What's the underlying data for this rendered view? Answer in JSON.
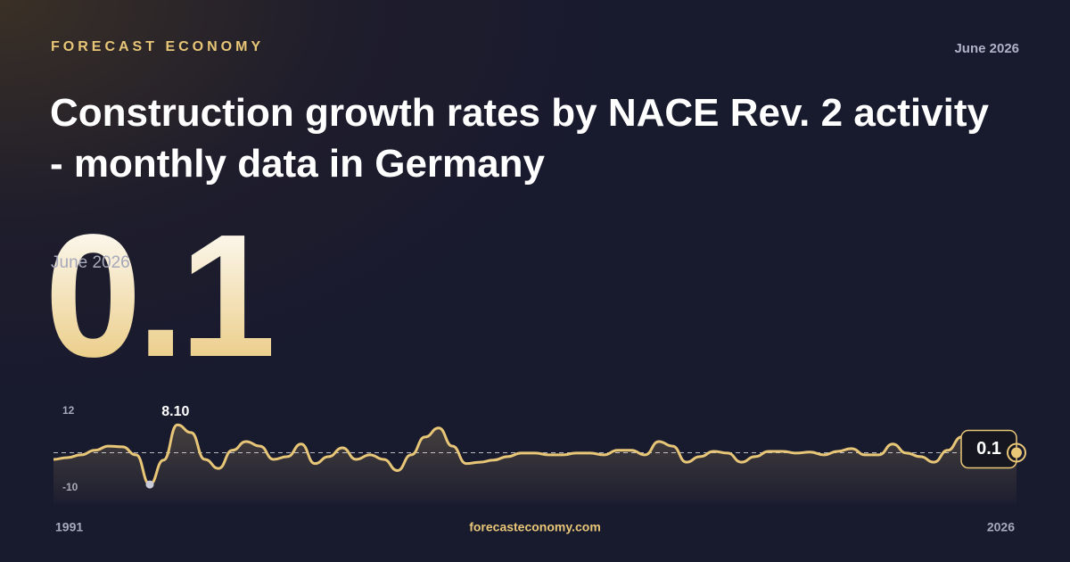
{
  "brand": "FORECAST ECONOMY",
  "date": "June 2026",
  "title": "Construction growth rates by NACE Rev. 2 activity - monthly data in Germany",
  "headline_value": 0.1,
  "headline_date": "June 2026",
  "site": "forecasteconomy.com",
  "chart_data": {
    "type": "line",
    "color": "#e8c677",
    "x": [
      1991,
      1991.5,
      1992,
      1992.5,
      1993,
      1993.5,
      1994,
      1994.5,
      1995,
      1995.5,
      1996,
      1996.5,
      1997,
      1997.5,
      1998,
      1998.5,
      1999,
      1999.5,
      2000,
      2000.5,
      2001,
      2001.5,
      2002,
      2002.5,
      2003,
      2003.5,
      2004,
      2004.5,
      2005,
      2005.5,
      2006,
      2006.5,
      2007,
      2007.5,
      2008,
      2008.5,
      2009,
      2009.5,
      2010,
      2010.5,
      2011,
      2011.5,
      2012,
      2012.5,
      2013,
      2013.5,
      2014,
      2014.5,
      2015,
      2015.5,
      2016,
      2016.5,
      2017,
      2017.5,
      2018,
      2018.5,
      2019,
      2019.5,
      2020,
      2020.5,
      2021,
      2021.5,
      2022,
      2022.5,
      2023,
      2023.5,
      2024,
      2024.5,
      2025,
      2025.5,
      2026
    ],
    "values": [
      -1.8,
      -1.3,
      -0.5,
      0.8,
      2,
      1.8,
      -0.5,
      -9,
      -2,
      8.1,
      5.9,
      -1.8,
      -4.4,
      0.8,
      3.3,
      2,
      -1.8,
      -1,
      2.6,
      -3,
      -1,
      1.5,
      -1.8,
      -0.5,
      -1.8,
      -5,
      -0.5,
      4.6,
      7.2,
      2,
      -3,
      -2.6,
      -2,
      -1,
      0,
      0,
      -0.5,
      -0.5,
      0,
      0,
      -0.5,
      0.8,
      0.8,
      -0.5,
      3.3,
      2,
      -2.6,
      -1,
      0.5,
      0,
      -2.6,
      -1,
      0.5,
      0.5,
      0,
      0.3,
      -0.5,
      0.5,
      1.3,
      -0.5,
      -0.5,
      2.6,
      0,
      -1,
      -2.6,
      0.8,
      4.6,
      4.6,
      0.8,
      0,
      0.1
    ],
    "value_labels": [
      null,
      null,
      null,
      null,
      null,
      null,
      null,
      null,
      null,
      "8.10",
      null,
      null,
      null,
      null,
      null,
      null,
      null,
      null,
      null,
      null,
      null,
      null,
      null,
      null,
      null,
      null,
      null,
      null,
      null,
      null,
      null,
      null,
      null,
      null,
      null,
      null,
      null,
      null,
      null,
      null,
      null,
      null,
      null,
      null,
      null,
      null,
      null,
      null,
      null,
      null,
      null,
      null,
      null,
      null,
      null,
      null,
      null,
      null,
      null,
      null,
      null,
      null,
      null,
      null,
      null,
      null,
      null,
      null,
      null,
      null,
      "0.1"
    ],
    "xlim": [
      1991,
      2026
    ],
    "xticks": [
      1991,
      2026
    ],
    "ylim": [
      -10,
      12
    ],
    "yticks": [
      12,
      -10
    ]
  }
}
